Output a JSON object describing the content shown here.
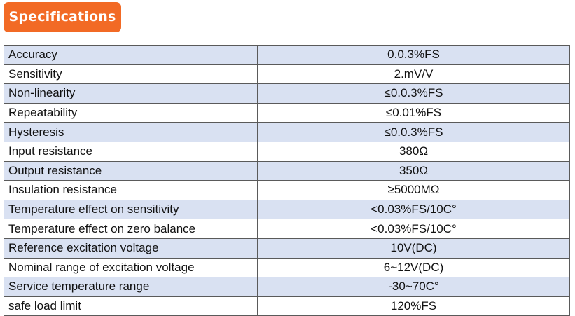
{
  "header": {
    "title": "Specifications",
    "accent_color": "#f26a25"
  },
  "table": {
    "shaded_row_color": "#d9e1f2",
    "rows": [
      {
        "parameter": "Accuracy",
        "value": "0.0.3%FS"
      },
      {
        "parameter": "Sensitivity",
        "value": "2.mV/V"
      },
      {
        "parameter": "Non-linearity",
        "value": "≤0.0.3%FS"
      },
      {
        "parameter": "Repeatability",
        "value": "≤0.01%FS"
      },
      {
        "parameter": "Hysteresis",
        "value": "≤0.0.3%FS"
      },
      {
        "parameter": "Input resistance",
        "value": "380Ω"
      },
      {
        "parameter": "Output resistance",
        "value": "350Ω"
      },
      {
        "parameter": "Insulation resistance",
        "value": "≥5000MΩ"
      },
      {
        "parameter": "Temperature effect on sensitivity",
        "value": "<0.03%FS/10C°"
      },
      {
        "parameter": "Temperature effect on zero balance",
        "value": "<0.03%FS/10C°"
      },
      {
        "parameter": "Reference excitation voltage",
        "value": "10V(DC)"
      },
      {
        "parameter": "Nominal range of excitation voltage",
        "value": "6~12V(DC)"
      },
      {
        "parameter": "Service temperature range",
        "value": "-30~70C°"
      },
      {
        "parameter": "safe load limit",
        "value": "120%FS"
      }
    ]
  }
}
